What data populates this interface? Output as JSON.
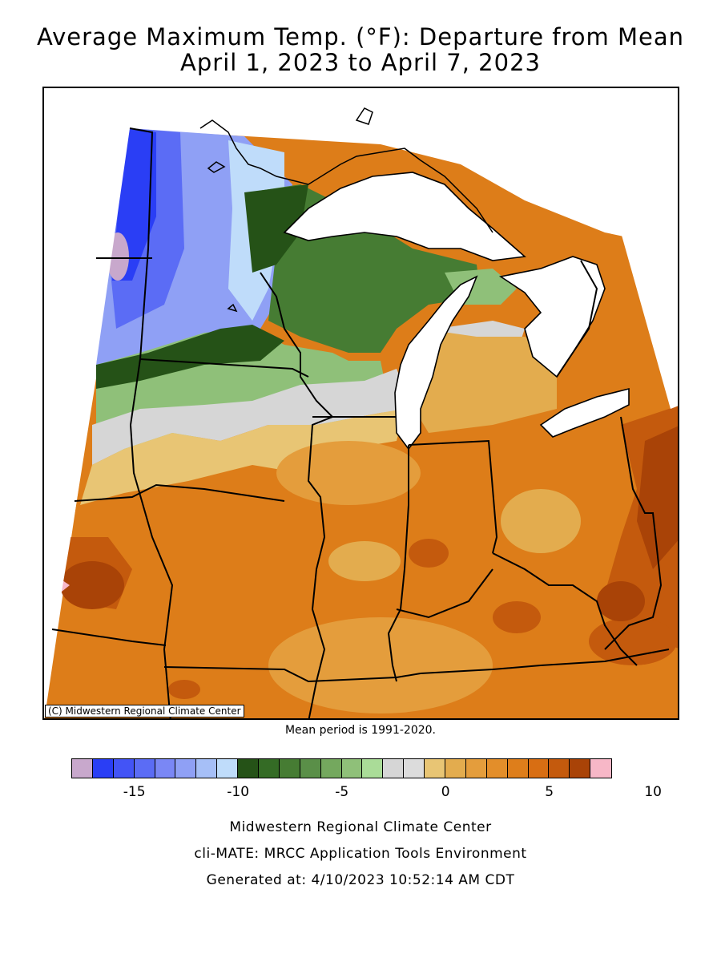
{
  "title_line1": "Average Maximum Temp. (°F): Departure from Mean",
  "title_line2": "April 1, 2023 to April 7, 2023",
  "map": {
    "copyright": "(C) Midwestern Regional Climate Center",
    "region": "Midwest US"
  },
  "mean_period": "Mean period is 1991-2020.",
  "legend": {
    "colors": [
      "#c8a8cc",
      "#2a3ef5",
      "#4354f6",
      "#5b6cf5",
      "#7a87f5",
      "#8fa0f5",
      "#a6bff7",
      "#bfdcfa",
      "#255217",
      "#346b25",
      "#467c33",
      "#5a8f48",
      "#74a85e",
      "#8fc079",
      "#aadc98",
      "#d6d6d6",
      "#dcdcdc",
      "#e8c574",
      "#e3ac4e",
      "#e49d3c",
      "#e38e2a",
      "#de7e1b",
      "#d86e13",
      "#c45a0d",
      "#a94307",
      "#f7b7c7"
    ],
    "ticks": [
      "-15",
      "-10",
      "-5",
      "0",
      "5",
      "10"
    ]
  },
  "footer": {
    "line1": "Midwestern Regional Climate Center",
    "line2": "cli-MATE: MRCC Application Tools Environment",
    "line3": "Generated at: 4/10/2023 10:52:14 AM CDT"
  }
}
